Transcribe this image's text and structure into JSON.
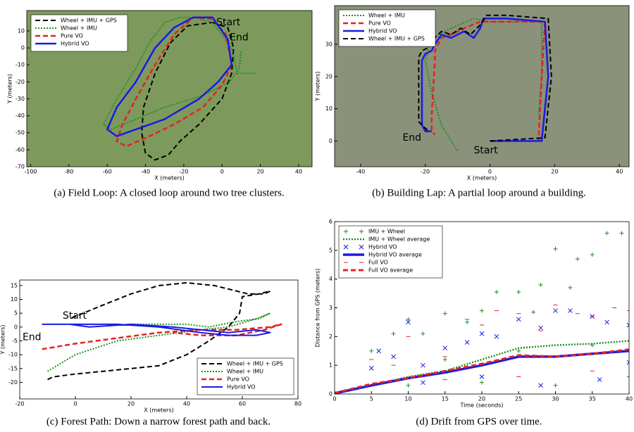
{
  "chart_data": [
    {
      "type": "line",
      "caption": "(a) Field Loop: A closed loop around two tree clusters.",
      "xlabel": "X (meters)",
      "ylabel": "Y (meters)",
      "xlim": [
        -102,
        47
      ],
      "ylim": [
        -70,
        22
      ],
      "xticks": [
        -100,
        -80,
        -60,
        -40,
        -20,
        0,
        20,
        40
      ],
      "yticks": [
        10,
        0,
        -10,
        -20,
        -30,
        -40,
        -50,
        -60,
        -70
      ],
      "background": "#7d9a5c",
      "legend": "upper left",
      "annotations": [
        {
          "text": "Start",
          "x": -3,
          "y": 15
        },
        {
          "text": "End",
          "x": 4,
          "y": 6
        }
      ],
      "series": [
        {
          "name": "Wheel + IMU + GPS",
          "color": "#000000",
          "linestyle": "dashed",
          "linewidth": 2,
          "x": [
            -5,
            3,
            6,
            5,
            0,
            -12,
            -22,
            -28,
            -35,
            -40,
            -42,
            -41,
            -35,
            -27,
            -18,
            -5
          ],
          "values": [
            15,
            12,
            0,
            -15,
            -30,
            -45,
            -55,
            -63,
            -66,
            -62,
            -50,
            -35,
            -15,
            3,
            13,
            15
          ]
        },
        {
          "name": "Wheel + IMU",
          "color": "#1f8f1f",
          "linestyle": "dotted",
          "linewidth": 2,
          "x": [
            10,
            9,
            4,
            -10,
            -30,
            -45,
            -58,
            -62,
            -55,
            -45,
            -38,
            -30,
            -22,
            -15,
            -5,
            5,
            8,
            18
          ],
          "values": [
            -2,
            -12,
            -20,
            -28,
            -35,
            -42,
            -48,
            -45,
            -30,
            -12,
            3,
            15,
            18,
            18,
            15,
            0,
            -15,
            -15
          ]
        },
        {
          "name": "Pure VO",
          "color": "#e8201e",
          "linestyle": "dashed",
          "linewidth": 2.5,
          "x": [
            5,
            0,
            -10,
            -25,
            -38,
            -50,
            -55,
            -52,
            -45,
            -35,
            -25,
            -15,
            -5,
            2,
            5
          ],
          "values": [
            -10,
            -22,
            -35,
            -45,
            -52,
            -58,
            -55,
            -45,
            -30,
            -10,
            8,
            18,
            17,
            8,
            -10
          ]
        },
        {
          "name": "Hybrid VO",
          "color": "#1a1ae6",
          "linestyle": "solid",
          "linewidth": 2.5,
          "x": [
            5,
            -2,
            -12,
            -30,
            -45,
            -55,
            -60,
            -55,
            -45,
            -35,
            -25,
            -15,
            -5,
            3,
            5
          ],
          "values": [
            -10,
            -20,
            -30,
            -42,
            -48,
            -52,
            -48,
            -35,
            -20,
            0,
            12,
            18,
            18,
            5,
            -10
          ]
        }
      ]
    },
    {
      "type": "line",
      "caption": "(b) Building Lap: A partial loop around a building.",
      "xlabel": "X (meters)",
      "ylabel": "Y (meters)",
      "xlim": [
        -48,
        43
      ],
      "ylim": [
        -8,
        42
      ],
      "xticks": [
        -40,
        -20,
        0,
        20,
        40
      ],
      "yticks": [
        0,
        10,
        20,
        30
      ],
      "background": "#8a927a",
      "legend": "upper left",
      "annotations": [
        {
          "text": "End",
          "x": -27,
          "y": 1
        },
        {
          "text": "Start",
          "x": -5,
          "y": -3
        }
      ],
      "series": [
        {
          "name": "Wheel + IMU",
          "color": "#1f8f1f",
          "linestyle": "dotted",
          "linewidth": 2,
          "x": [
            -10,
            -12,
            -15,
            -18,
            -20,
            -18,
            -12,
            -5,
            0,
            10,
            16,
            16,
            15
          ],
          "values": [
            -3,
            0,
            5,
            15,
            25,
            32,
            35,
            38,
            37,
            37,
            37,
            20,
            8
          ]
        },
        {
          "name": "Pure VO",
          "color": "#e8201e",
          "linestyle": "dashed",
          "linewidth": 2.5,
          "x": [
            0,
            15,
            16,
            17,
            5,
            -3,
            -8,
            -12,
            -15,
            -17,
            -17,
            -18,
            -18,
            -17
          ],
          "values": [
            0,
            0,
            20,
            37,
            37,
            37,
            35,
            33,
            32,
            28,
            25,
            8,
            3,
            2
          ]
        },
        {
          "name": "Hybrid VO",
          "color": "#1a1ae6",
          "linestyle": "solid",
          "linewidth": 2.5,
          "x": [
            0,
            16,
            18,
            17,
            5,
            -2,
            -3,
            -5,
            -8,
            -12,
            -15,
            -17,
            -18,
            -20,
            -21,
            -21,
            -20,
            -18
          ],
          "values": [
            0,
            0,
            20,
            37,
            38,
            38,
            35,
            32,
            34,
            32,
            33,
            30,
            28,
            27,
            25,
            5,
            3,
            3
          ]
        },
        {
          "name": "Wheel + IMU + GPS",
          "color": "#000000",
          "linestyle": "dashed",
          "linewidth": 2,
          "x": [
            0,
            17,
            19,
            18,
            5,
            -1,
            -3,
            -6,
            -9,
            -12,
            -15,
            -18,
            -19,
            -21,
            -22,
            -22,
            -20,
            -19
          ],
          "values": [
            0,
            1,
            20,
            38,
            39,
            39,
            36,
            33,
            35,
            33,
            34,
            31,
            29,
            28,
            26,
            6,
            4,
            3
          ]
        }
      ]
    },
    {
      "type": "line",
      "caption": "(c) Forest Path: Down a narrow forest path and back.",
      "xlabel": "X (meters)",
      "ylabel": "Y (meters)",
      "xlim": [
        -20,
        80
      ],
      "ylim": [
        -26,
        17
      ],
      "xticks": [
        -20,
        0,
        20,
        40,
        60,
        80
      ],
      "yticks": [
        15,
        10,
        5,
        0,
        -5,
        -10,
        -15,
        -20
      ],
      "legend": "lower right",
      "annotations": [
        {
          "text": "Start",
          "x": -4.6,
          "y": 4
        },
        {
          "text": "End",
          "x": -19,
          "y": -3.7
        }
      ],
      "series": [
        {
          "name": "Wheel + IMU + GPS",
          "color": "#000000",
          "linestyle": "dashed",
          "linewidth": 2,
          "x": [
            -10,
            -8,
            0,
            10,
            20,
            30,
            40,
            48,
            55,
            59,
            60,
            66,
            70,
            68,
            62,
            58,
            50,
            40,
            30,
            20,
            10,
            -2
          ],
          "values": [
            -19,
            -18,
            -17,
            -16,
            -15,
            -14,
            -10,
            -5,
            0,
            5,
            11,
            12,
            13,
            12,
            12,
            13,
            15,
            16,
            15,
            12,
            8,
            3
          ]
        },
        {
          "name": "Wheel + IMU",
          "color": "#1f8f1f",
          "linestyle": "dotted",
          "linewidth": 2,
          "x": [
            -10,
            0,
            15,
            30,
            45,
            55,
            65,
            70,
            66,
            58,
            48,
            40,
            30,
            20
          ],
          "values": [
            -16,
            -10,
            -5,
            -3,
            -1,
            0,
            3,
            5,
            3,
            2,
            0,
            1,
            1,
            1
          ]
        },
        {
          "name": "Pure VO",
          "color": "#e8201e",
          "linestyle": "dashed",
          "linewidth": 2.5,
          "x": [
            -12,
            0,
            15,
            30,
            45,
            58,
            70,
            74,
            68,
            58,
            45,
            35
          ],
          "values": [
            -8,
            -6,
            -4,
            -2,
            -1,
            -1,
            0,
            1,
            -1,
            -3,
            -3,
            -2
          ]
        },
        {
          "name": "Hybrid VO",
          "color": "#1a1ae6",
          "linestyle": "solid",
          "linewidth": 2,
          "x": [
            -12,
            0,
            15,
            30,
            45,
            55,
            65,
            70,
            65,
            55,
            45,
            35,
            20,
            5,
            -2
          ],
          "values": [
            1,
            1,
            1,
            0,
            -2,
            -3,
            -3,
            -2,
            -1,
            -2,
            -1,
            0,
            1,
            0,
            1
          ]
        }
      ]
    },
    {
      "type": "line",
      "caption": "(d) Drift from GPS over time.",
      "xlabel": "Time (seconds)",
      "ylabel": "Distance from GPS (meters)",
      "xlim": [
        0,
        40
      ],
      "ylim": [
        0,
        6
      ],
      "xticks": [
        0,
        5,
        10,
        15,
        20,
        25,
        30,
        35,
        40
      ],
      "yticks": [
        0,
        1,
        2,
        3,
        4,
        5,
        6
      ],
      "legend": "upper left",
      "series": [
        {
          "name": "IMU + Wheel",
          "color": "#1f8f1f",
          "marker": "+",
          "x": [
            5,
            8,
            10,
            12,
            15,
            18,
            20,
            22,
            25,
            27,
            28,
            30,
            32,
            33,
            35,
            37,
            39,
            10,
            20,
            30,
            40,
            15,
            25,
            35
          ],
          "values": [
            1.5,
            2.1,
            2.6,
            2.1,
            2.8,
            2.5,
            2.9,
            3.55,
            3.55,
            2.85,
            3.8,
            5.05,
            3.7,
            4.7,
            4.85,
            5.6,
            5.6,
            0.3,
            0.4,
            0.3,
            0.6,
            1.2,
            1.5,
            1.7
          ]
        },
        {
          "name": "IMU + Wheel average",
          "color": "#1f8f1f",
          "linestyle": "dotted",
          "linewidth": 2.5,
          "x": [
            0,
            5,
            10,
            15,
            20,
            25,
            30,
            35,
            40
          ],
          "values": [
            0.05,
            0.3,
            0.6,
            0.8,
            1.2,
            1.6,
            1.7,
            1.75,
            1.85
          ]
        },
        {
          "name": "Hybrid VO",
          "color": "#1a1ae6",
          "marker": "x",
          "x": [
            5,
            6,
            8,
            10,
            12,
            15,
            18,
            20,
            22,
            25,
            28,
            30,
            32,
            35,
            37,
            40,
            12,
            20,
            28,
            36,
            40
          ],
          "values": [
            0.9,
            1.5,
            1.3,
            2.5,
            1.0,
            1.6,
            1.8,
            2.1,
            2.0,
            2.6,
            2.3,
            2.9,
            2.9,
            2.7,
            2.5,
            2.4,
            0.4,
            0.6,
            0.3,
            0.5,
            1.1
          ]
        },
        {
          "name": "Hybrid VO average",
          "color": "#1a1ae6",
          "linestyle": "solid",
          "linewidth": 3.5,
          "x": [
            0,
            5,
            10,
            15,
            20,
            25,
            30,
            35,
            40
          ],
          "values": [
            0.02,
            0.3,
            0.55,
            0.75,
            1.0,
            1.3,
            1.3,
            1.4,
            1.5
          ]
        },
        {
          "name": "Full VO",
          "color": "#e8201e",
          "marker": "_",
          "x": [
            5,
            8,
            10,
            15,
            18,
            20,
            22,
            25,
            28,
            30,
            33,
            35,
            38,
            40,
            15,
            25,
            35
          ],
          "values": [
            1.2,
            1.0,
            2.0,
            1.3,
            2.6,
            2.4,
            2.9,
            2.8,
            2.2,
            3.1,
            2.8,
            2.7,
            3.0,
            2.9,
            0.5,
            0.6,
            0.8
          ]
        },
        {
          "name": "Full VO average",
          "color": "#e8201e",
          "linestyle": "dashed",
          "linewidth": 3,
          "x": [
            0,
            5,
            10,
            15,
            20,
            25,
            30,
            35,
            40
          ],
          "values": [
            0.03,
            0.35,
            0.55,
            0.8,
            1.05,
            1.35,
            1.3,
            1.4,
            1.55
          ]
        }
      ]
    }
  ]
}
